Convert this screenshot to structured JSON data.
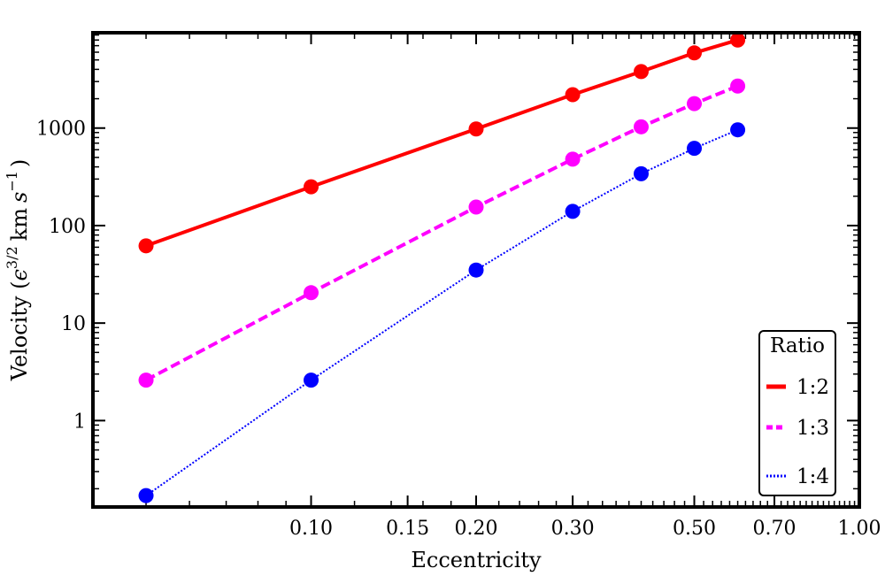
{
  "chart_data": {
    "type": "scatter",
    "title": "",
    "xlabel": "Eccentricity",
    "ylabel_prefix": "Velocity (",
    "ylabel_epsilon": "ϵ",
    "ylabel_exp": "3/2",
    "ylabel_unit": "km",
    "ylabel_s": "s",
    "ylabel_s_exp": "−1",
    "ylabel_suffix": ")",
    "xscale": "log",
    "yscale": "log",
    "xlim": [
      0.04,
      1.0
    ],
    "ylim": [
      0.13,
      9500
    ],
    "x_ticks": [
      {
        "value": 0.1,
        "label": "0.10"
      },
      {
        "value": 0.15,
        "label": "0.15"
      },
      {
        "value": 0.2,
        "label": "0.20"
      },
      {
        "value": 0.3,
        "label": "0.30"
      },
      {
        "value": 0.5,
        "label": "0.50"
      },
      {
        "value": 0.7,
        "label": "0.70"
      },
      {
        "value": 1.0,
        "label": "1.00"
      }
    ],
    "y_ticks": [
      {
        "value": 1,
        "label": "1"
      },
      {
        "value": 10,
        "label": "10"
      },
      {
        "value": 100,
        "label": "100"
      },
      {
        "value": 1000,
        "label": "1000"
      }
    ],
    "legend": {
      "title": "Ratio",
      "placement": "bottom-right"
    },
    "series": [
      {
        "name": "1:2",
        "color": "#ff0000",
        "line": "solid",
        "x": [
          0.05,
          0.1,
          0.2,
          0.3,
          0.4,
          0.5,
          0.6
        ],
        "y": [
          62,
          250,
          980,
          2200,
          3800,
          5900,
          8000
        ]
      },
      {
        "name": "1:3",
        "color": "#ff00ff",
        "line": "dashed",
        "x": [
          0.05,
          0.1,
          0.2,
          0.3,
          0.4,
          0.5,
          0.6
        ],
        "y": [
          2.6,
          20.5,
          155,
          480,
          1030,
          1780,
          2700
        ]
      },
      {
        "name": "1:4",
        "color": "#0000ff",
        "line": "dotted",
        "x": [
          0.05,
          0.1,
          0.2,
          0.3,
          0.4,
          0.5,
          0.6
        ],
        "y": [
          0.17,
          2.6,
          35,
          140,
          340,
          620,
          960
        ]
      }
    ]
  }
}
